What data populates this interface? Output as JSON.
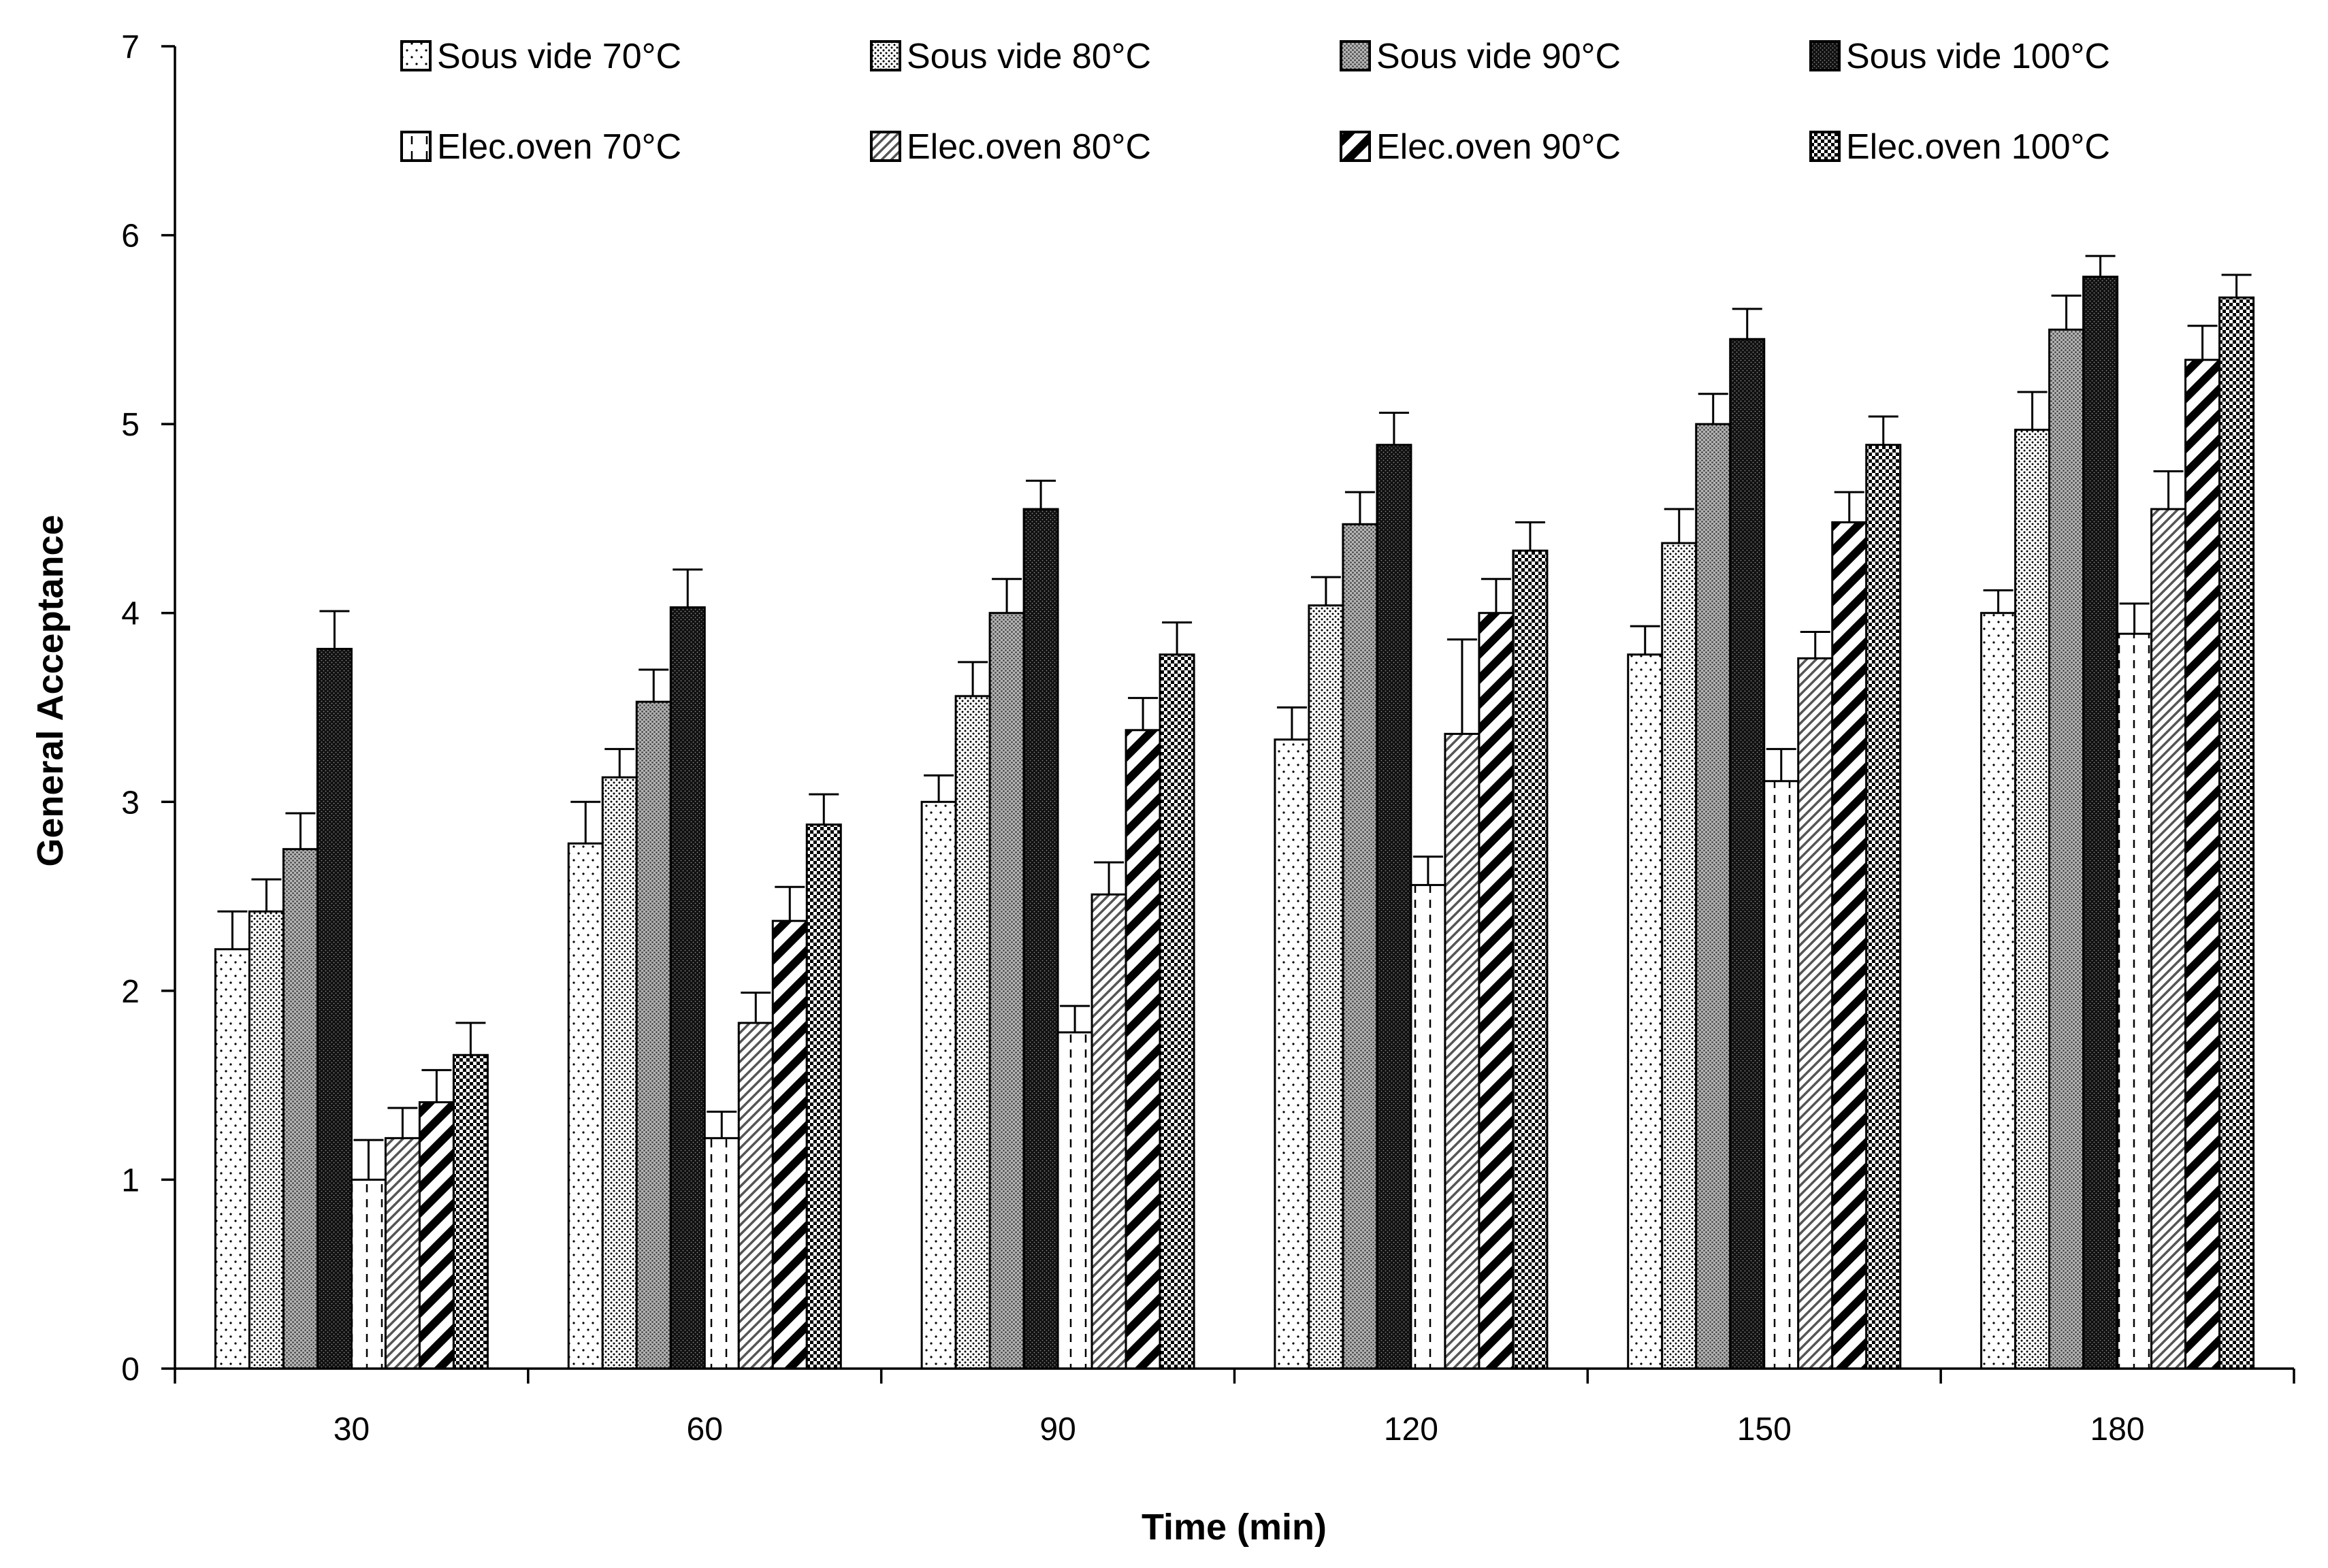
{
  "chart_data": {
    "type": "bar",
    "title": "",
    "xlabel": "Time (min)",
    "ylabel": "General Acceptance",
    "categories": [
      "30",
      "60",
      "90",
      "120",
      "150",
      "180"
    ],
    "ylim": [
      0,
      7
    ],
    "yticks": [
      "0",
      "1",
      "2",
      "3",
      "4",
      "5",
      "6",
      "7"
    ],
    "grid": false,
    "legend_position": "top",
    "error_bars": true,
    "series": [
      {
        "name": "Sous vide 70°C",
        "pattern": "sparse-dots",
        "values": [
          2.22,
          2.78,
          3.0,
          3.33,
          3.78,
          4.0
        ],
        "errors": [
          0.2,
          0.22,
          0.14,
          0.17,
          0.15,
          0.12
        ]
      },
      {
        "name": "Sous vide 80°C",
        "pattern": "dense-dots",
        "values": [
          2.42,
          3.13,
          3.56,
          4.04,
          4.37,
          4.97
        ],
        "errors": [
          0.17,
          0.15,
          0.18,
          0.15,
          0.18,
          0.2
        ]
      },
      {
        "name": "Sous vide 90°C",
        "pattern": "gray-dots",
        "values": [
          2.75,
          3.53,
          4.0,
          4.47,
          5.0,
          5.5
        ],
        "errors": [
          0.19,
          0.17,
          0.18,
          0.17,
          0.16,
          0.18
        ]
      },
      {
        "name": "Sous vide 100°C",
        "pattern": "black-dots",
        "values": [
          3.81,
          4.03,
          4.55,
          4.89,
          5.45,
          5.78
        ],
        "errors": [
          0.2,
          0.2,
          0.15,
          0.17,
          0.16,
          0.11
        ]
      },
      {
        "name": "Elec.oven 70°C",
        "pattern": "vertical-dashes",
        "values": [
          1.0,
          1.22,
          1.78,
          2.56,
          3.11,
          3.89
        ],
        "errors": [
          0.21,
          0.14,
          0.14,
          0.15,
          0.17,
          0.16
        ]
      },
      {
        "name": "Elec.oven 80°C",
        "pattern": "thin-diagonal",
        "values": [
          1.22,
          1.83,
          2.51,
          3.36,
          3.76,
          4.55
        ],
        "errors": [
          0.16,
          0.16,
          0.17,
          0.5,
          0.14,
          0.2
        ]
      },
      {
        "name": "Elec.oven 90°C",
        "pattern": "thick-diagonal",
        "values": [
          1.41,
          2.37,
          3.38,
          4.0,
          4.48,
          5.34
        ],
        "errors": [
          0.17,
          0.18,
          0.17,
          0.18,
          0.16,
          0.18
        ]
      },
      {
        "name": "Elec.oven 100°C",
        "pattern": "checker",
        "values": [
          1.66,
          2.88,
          3.78,
          4.33,
          4.89,
          5.67
        ],
        "errors": [
          0.17,
          0.16,
          0.17,
          0.15,
          0.15,
          0.12
        ]
      }
    ]
  }
}
